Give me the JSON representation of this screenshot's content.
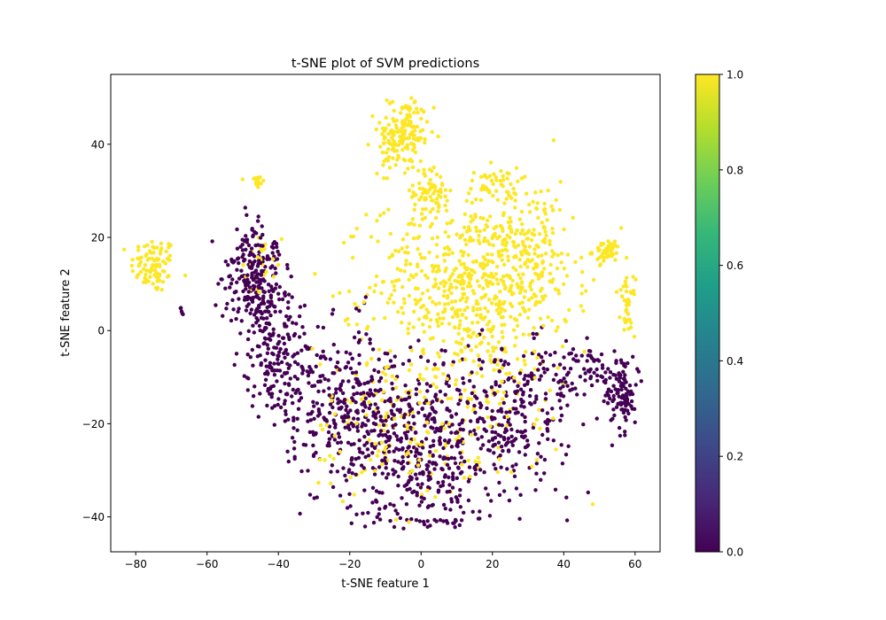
{
  "chart_data": {
    "type": "scatter",
    "title": "t-SNE plot of SVM predictions",
    "xlabel": "t-SNE feature 1",
    "ylabel": "t-SNE feature 2",
    "xlim": [
      -87,
      67
    ],
    "ylim": [
      -47.5,
      55
    ],
    "xticks": [
      -80,
      -60,
      -40,
      -20,
      0,
      20,
      40,
      60
    ],
    "yticks": [
      -40,
      -20,
      0,
      20,
      40
    ],
    "grid": false,
    "legend": "none",
    "colormap": "viridis",
    "colorbar": {
      "range": [
        0.0,
        1.0
      ],
      "ticks": [
        "0.0",
        "0.2",
        "0.4",
        "0.6",
        "0.8",
        "1.0"
      ],
      "stops": [
        "#440154",
        "#482878",
        "#3e4989",
        "#31688e",
        "#26828e",
        "#1f9e89",
        "#35b779",
        "#6ece58",
        "#b5de2b",
        "#fde725"
      ]
    },
    "colors": {
      "class_0": "#440154",
      "class_1": "#fde725"
    },
    "x_tick_labels": [
      "−80",
      "−60",
      "−40",
      "−20",
      "0",
      "20",
      "40",
      "60"
    ],
    "y_tick_labels": [
      "−40",
      "−20",
      "0",
      "20",
      "40"
    ],
    "series": [
      {
        "value": 1,
        "clusters": [
          {
            "cx": -75,
            "cy": 14,
            "sx": 3.2,
            "sy": 3.0,
            "n": 90
          },
          {
            "cx": -46,
            "cy": 32,
            "sx": 1.0,
            "sy": 1.0,
            "n": 18
          },
          {
            "cx": -5,
            "cy": 42,
            "sx": 3.5,
            "sy": 4.0,
            "n": 170
          },
          {
            "cx": 3,
            "cy": 30,
            "sx": 2.5,
            "sy": 2.5,
            "n": 60
          },
          {
            "cx": 20,
            "cy": 31,
            "sx": 3.5,
            "sy": 2.0,
            "n": 50
          },
          {
            "cx": 52,
            "cy": 17,
            "sx": 2.0,
            "sy": 1.2,
            "n": 50
          },
          {
            "cx": 58,
            "cy": 5,
            "sx": 1.0,
            "sy": 3.0,
            "n": 40
          },
          {
            "cx": 14,
            "cy": 10,
            "sx": 14.0,
            "sy": 9.0,
            "n": 620
          },
          {
            "cx": 32,
            "cy": 20,
            "sx": 5.0,
            "sy": 6.0,
            "n": 110
          },
          {
            "cx": -45,
            "cy": 15,
            "sx": 3.0,
            "sy": 3.0,
            "n": 25
          },
          {
            "cx": -10,
            "cy": -20,
            "sx": 10.0,
            "sy": 10.0,
            "n": 120
          },
          {
            "cx": 18,
            "cy": -15,
            "sx": 12.0,
            "sy": 10.0,
            "n": 110
          }
        ]
      },
      {
        "value": 0,
        "clusters": [
          {
            "cx": -47,
            "cy": 12,
            "sx": 4.0,
            "sy": 5.0,
            "n": 220
          },
          {
            "cx": -40,
            "cy": -5,
            "sx": 5.0,
            "sy": 7.0,
            "n": 200
          },
          {
            "cx": -22,
            "cy": -15,
            "sx": 8.0,
            "sy": 8.0,
            "n": 260
          },
          {
            "cx": 0,
            "cy": -25,
            "sx": 12.0,
            "sy": 9.0,
            "n": 480
          },
          {
            "cx": 25,
            "cy": -18,
            "sx": 9.0,
            "sy": 8.0,
            "n": 220
          },
          {
            "cx": 56,
            "cy": -14,
            "sx": 2.0,
            "sy": 3.5,
            "n": 90
          },
          {
            "cx": 46,
            "cy": -9,
            "sx": 7.0,
            "sy": 3.0,
            "n": 90
          },
          {
            "cx": -67,
            "cy": 4,
            "sx": 0.6,
            "sy": 0.6,
            "n": 5
          }
        ]
      }
    ]
  }
}
